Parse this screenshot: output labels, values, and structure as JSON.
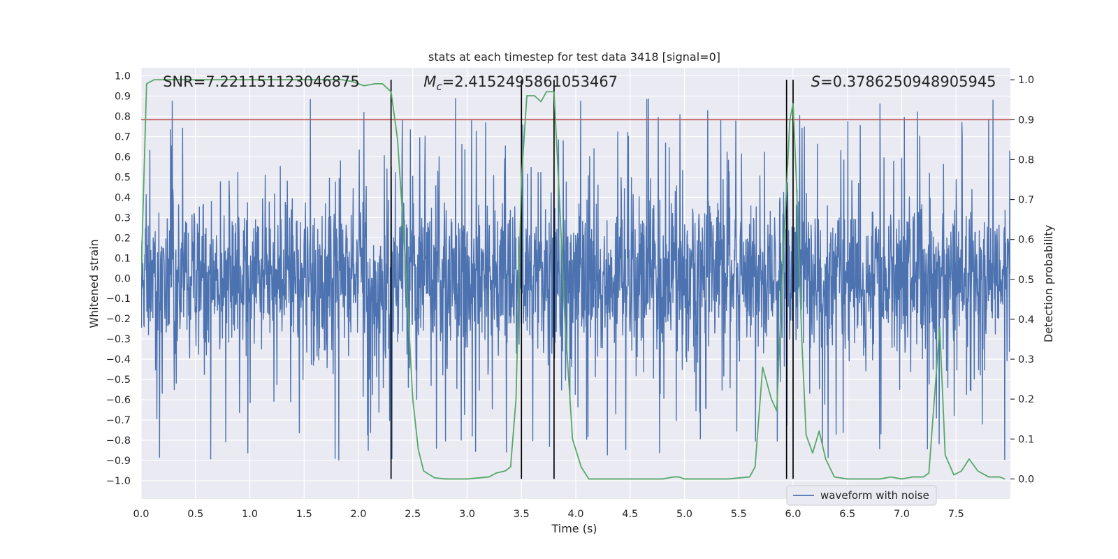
{
  "chart_data": {
    "type": "line",
    "title": "stats at each timestep for test data 3418 [signal=0]",
    "xlabel": "Time (s)",
    "ylabel_left": "Whitened strain",
    "ylabel_right": "Detection probability",
    "xlim": [
      0.0,
      8.0
    ],
    "ylim_left": [
      -1.09,
      1.04
    ],
    "ylim_right": [
      -0.05,
      1.03
    ],
    "x_ticks": [
      "0.0",
      "0.5",
      "1.0",
      "1.5",
      "2.0",
      "2.5",
      "3.0",
      "3.5",
      "4.0",
      "4.5",
      "5.0",
      "5.5",
      "6.0",
      "6.5",
      "7.0",
      "7.5"
    ],
    "y_ticks_left": [
      "1.0",
      "0.9",
      "0.8",
      "0.7",
      "0.6",
      "0.5",
      "0.4",
      "0.3",
      "0.2",
      "0.1",
      "0.0",
      "−0.1",
      "−0.2",
      "−0.3",
      "−0.4",
      "−0.5",
      "−0.6",
      "−0.7",
      "−0.8",
      "−0.9",
      "−1.0"
    ],
    "y_ticks_right": [
      "1.0",
      "0.9",
      "0.8",
      "0.7",
      "0.6",
      "0.5",
      "0.4",
      "0.3",
      "0.2",
      "0.1",
      "0.0"
    ],
    "grid": true,
    "legend_position": "lower-right",
    "annotations": [
      {
        "prefix": "SNR=",
        "value": "7.221151123046875",
        "x": 0.2
      },
      {
        "prefix": "M",
        "sub": "c",
        "suffix": "=2.4152495861053467",
        "x": 2.6
      },
      {
        "prefix": "S",
        "suffix": "=0.3786250948905945",
        "x": 5.6
      }
    ],
    "threshold": {
      "axis": "right",
      "value": 0.9,
      "color": "#c44e52"
    },
    "vertical_lines": [
      2.3,
      3.5,
      3.8,
      5.94,
      6.0
    ],
    "series": [
      {
        "name": "waveform with noise",
        "axis": "left",
        "color": "#4c72b0",
        "summary": "dense noise between about -1.0 and 0.93 over 0-8 s"
      },
      {
        "axis": "right",
        "color": "#55a868",
        "points": [
          [
            0.0,
            0.51
          ],
          [
            0.05,
            0.99
          ],
          [
            0.12,
            1.0
          ],
          [
            0.4,
            1.0
          ],
          [
            0.8,
            1.0
          ],
          [
            1.2,
            1.0
          ],
          [
            1.6,
            1.0
          ],
          [
            1.85,
            1.0
          ],
          [
            1.95,
            0.995
          ],
          [
            2.05,
            0.985
          ],
          [
            2.15,
            0.99
          ],
          [
            2.22,
            0.99
          ],
          [
            2.3,
            0.97
          ],
          [
            2.36,
            0.85
          ],
          [
            2.42,
            0.6
          ],
          [
            2.5,
            0.2
          ],
          [
            2.55,
            0.075
          ],
          [
            2.6,
            0.02
          ],
          [
            2.7,
            0.003
          ],
          [
            2.8,
            0.0
          ],
          [
            3.0,
            0.0
          ],
          [
            3.2,
            0.005
          ],
          [
            3.27,
            0.015
          ],
          [
            3.35,
            0.02
          ],
          [
            3.4,
            0.03
          ],
          [
            3.45,
            0.2
          ],
          [
            3.5,
            0.75
          ],
          [
            3.55,
            0.96
          ],
          [
            3.62,
            0.96
          ],
          [
            3.68,
            0.945
          ],
          [
            3.73,
            0.97
          ],
          [
            3.8,
            0.97
          ],
          [
            3.85,
            0.7
          ],
          [
            3.9,
            0.4
          ],
          [
            3.97,
            0.1
          ],
          [
            4.05,
            0.03
          ],
          [
            4.12,
            0.0
          ],
          [
            4.3,
            0.0
          ],
          [
            4.6,
            0.0
          ],
          [
            4.8,
            0.0
          ],
          [
            4.9,
            0.005
          ],
          [
            4.95,
            0.005
          ],
          [
            5.0,
            0.0
          ],
          [
            5.2,
            0.0
          ],
          [
            5.4,
            0.0
          ],
          [
            5.6,
            0.005
          ],
          [
            5.65,
            0.03
          ],
          [
            5.72,
            0.28
          ],
          [
            5.8,
            0.2
          ],
          [
            5.85,
            0.17
          ],
          [
            5.9,
            0.5
          ],
          [
            5.97,
            0.9
          ],
          [
            6.0,
            0.94
          ],
          [
            6.03,
            0.75
          ],
          [
            6.08,
            0.35
          ],
          [
            6.12,
            0.11
          ],
          [
            6.18,
            0.065
          ],
          [
            6.24,
            0.12
          ],
          [
            6.3,
            0.05
          ],
          [
            6.38,
            0.005
          ],
          [
            6.5,
            0.0
          ],
          [
            6.8,
            0.0
          ],
          [
            6.9,
            0.005
          ],
          [
            7.0,
            0.0
          ],
          [
            7.1,
            0.005
          ],
          [
            7.2,
            0.005
          ],
          [
            7.25,
            0.015
          ],
          [
            7.3,
            0.2
          ],
          [
            7.35,
            0.38
          ],
          [
            7.4,
            0.06
          ],
          [
            7.48,
            0.01
          ],
          [
            7.55,
            0.02
          ],
          [
            7.62,
            0.05
          ],
          [
            7.7,
            0.02
          ],
          [
            7.8,
            0.005
          ],
          [
            7.9,
            0.005
          ],
          [
            7.95,
            0.0
          ]
        ]
      }
    ]
  }
}
